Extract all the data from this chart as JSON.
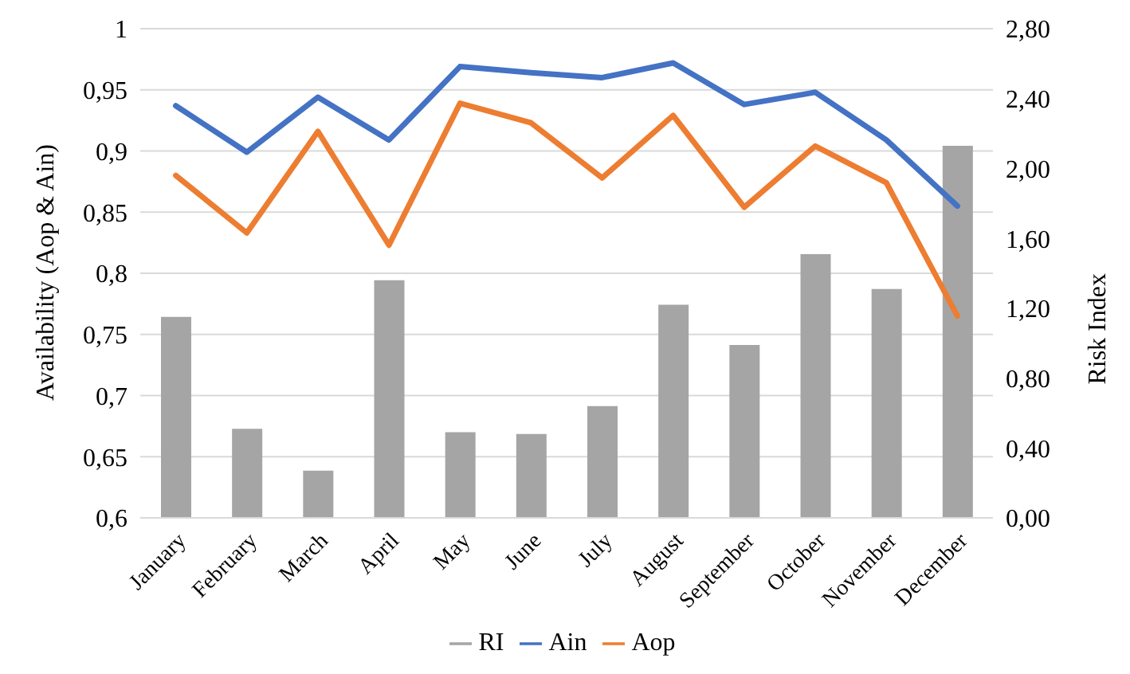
{
  "chart_data": {
    "type": "line",
    "categories": [
      "January",
      "February",
      "March",
      "April",
      "May",
      "June",
      "July",
      "August",
      "September",
      "October",
      "November",
      "December"
    ],
    "ylabel": "Availability (Aop & Ain)",
    "y2label": "Risk Index",
    "series": [
      {
        "name": "RI",
        "type": "bar",
        "axis": "y2",
        "color": "#a5a5a5",
        "values": [
          1.15,
          0.51,
          0.27,
          1.36,
          0.49,
          0.48,
          0.64,
          1.22,
          0.99,
          1.51,
          1.31,
          2.13
        ]
      },
      {
        "name": "Ain",
        "color": "#4472c4",
        "values": [
          0.937,
          0.899,
          0.944,
          0.909,
          0.969,
          0.964,
          0.96,
          0.972,
          0.938,
          0.948,
          0.909,
          0.855
        ]
      },
      {
        "name": "Aop",
        "color": "#ed7d31",
        "values": [
          0.88,
          0.833,
          0.916,
          0.823,
          0.939,
          0.923,
          0.878,
          0.929,
          0.854,
          0.904,
          0.874,
          0.765
        ]
      }
    ],
    "ylim": [
      0.6,
      1
    ],
    "yticks": [
      {
        "value": 0.6,
        "label": "0,6"
      },
      {
        "value": 0.65,
        "label": "0,65"
      },
      {
        "value": 0.7,
        "label": "0,7"
      },
      {
        "value": 0.75,
        "label": "0,75"
      },
      {
        "value": 0.8,
        "label": "0,8"
      },
      {
        "value": 0.85,
        "label": "0,85"
      },
      {
        "value": 0.9,
        "label": "0,9"
      },
      {
        "value": 0.95,
        "label": "0,95"
      },
      {
        "value": 1,
        "label": "1"
      }
    ],
    "y2lim": [
      0,
      2.8
    ],
    "y2ticks": [
      {
        "value": 0,
        "label": "0,00"
      },
      {
        "value": 0.4,
        "label": "0,40"
      },
      {
        "value": 0.8,
        "label": "0,80"
      },
      {
        "value": 1.2,
        "label": "1,20"
      },
      {
        "value": 1.6,
        "label": "1,60"
      },
      {
        "value": 2,
        "label": "2,00"
      },
      {
        "value": 2.4,
        "label": "2,40"
      },
      {
        "value": 2.8,
        "label": "2,80"
      }
    ],
    "grid": "y",
    "legend": "bottom",
    "marker": "none",
    "line_style": "solid"
  }
}
